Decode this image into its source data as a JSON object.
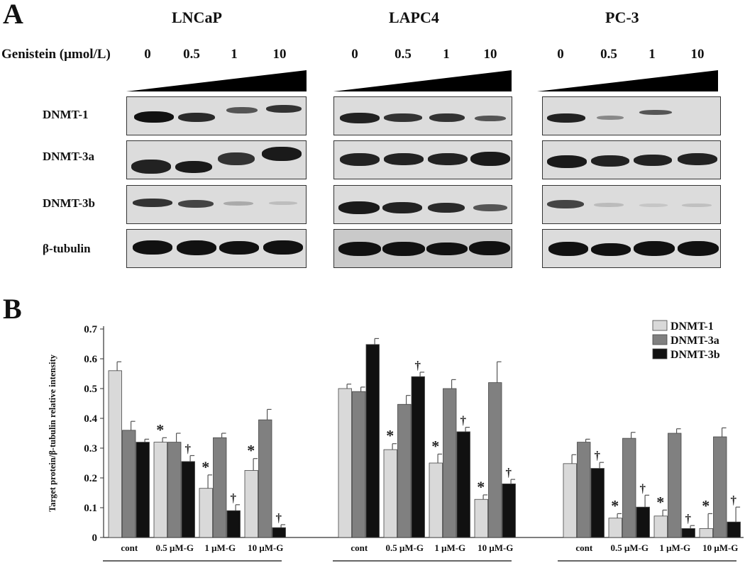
{
  "panelA": {
    "letter": "A",
    "treatment_label": "Genistein (μmol/L)",
    "doses": [
      "0",
      "0.5",
      "1",
      "10"
    ],
    "cell_lines": [
      "LNCaP",
      "LAPC4",
      "PC-3"
    ],
    "row_labels": [
      "DNMT-1",
      "DNMT-3a",
      "DNMT-3b",
      "β-tubulin"
    ]
  },
  "panelB": {
    "letter": "B"
  },
  "chart_data": {
    "type": "bar",
    "ylabel": "Target protein/β-tubulin relative intensity",
    "ylim": [
      0,
      0.7
    ],
    "yticks": [
      "0",
      "0.1",
      "0.2",
      "0.3",
      "0.4",
      "0.5",
      "0.6",
      "0.7"
    ],
    "legend_position": "top-right",
    "groups": [
      {
        "name": "LNCaP",
        "categories": [
          "cont",
          "0.5 μM-G",
          "1 μM-G",
          "10 μM-G"
        ],
        "series": [
          {
            "name": "DNMT-1",
            "values": [
              0.56,
              0.32,
              0.165,
              0.225
            ],
            "errors": [
              0.03,
              0.015,
              0.045,
              0.04
            ],
            "marks": [
              "",
              "*",
              "*",
              "*"
            ]
          },
          {
            "name": "DNMT-3a",
            "values": [
              0.36,
              0.32,
              0.335,
              0.395
            ],
            "errors": [
              0.03,
              0.03,
              0.015,
              0.035
            ],
            "marks": [
              "",
              "",
              "",
              ""
            ]
          },
          {
            "name": "DNMT-3b",
            "values": [
              0.32,
              0.255,
              0.09,
              0.033
            ],
            "errors": [
              0.01,
              0.02,
              0.02,
              0.01
            ],
            "marks": [
              "",
              "†",
              "†",
              "†"
            ]
          }
        ]
      },
      {
        "name": "LAPC-4",
        "categories": [
          "cont",
          "0.5 μM-G",
          "1 μM-G",
          "10 μM-G"
        ],
        "series": [
          {
            "name": "DNMT-1",
            "values": [
              0.5,
              0.295,
              0.25,
              0.128
            ],
            "errors": [
              0.015,
              0.02,
              0.03,
              0.015
            ],
            "marks": [
              "",
              "*",
              "*",
              "*"
            ]
          },
          {
            "name": "DNMT-3a",
            "values": [
              0.49,
              0.447,
              0.5,
              0.52
            ],
            "errors": [
              0.015,
              0.03,
              0.03,
              0.07
            ],
            "marks": [
              "",
              "",
              "",
              ""
            ]
          },
          {
            "name": "DNMT-3b",
            "values": [
              0.648,
              0.54,
              0.355,
              0.18
            ],
            "errors": [
              0.02,
              0.015,
              0.015,
              0.015
            ],
            "marks": [
              "",
              "†",
              "†",
              "†"
            ]
          }
        ]
      },
      {
        "name": "PC-3",
        "categories": [
          "cont",
          "0.5 μM-G",
          "1 μM-G",
          "10 μM-G"
        ],
        "series": [
          {
            "name": "DNMT-1",
            "values": [
              0.248,
              0.065,
              0.072,
              0.03
            ],
            "errors": [
              0.03,
              0.015,
              0.02,
              0.05
            ],
            "marks": [
              "",
              "*",
              "*",
              "*"
            ]
          },
          {
            "name": "DNMT-3a",
            "values": [
              0.32,
              0.333,
              0.35,
              0.338
            ],
            "errors": [
              0.01,
              0.02,
              0.015,
              0.03
            ],
            "marks": [
              "",
              "",
              "",
              ""
            ]
          },
          {
            "name": "DNMT-3b",
            "values": [
              0.232,
              0.102,
              0.03,
              0.052
            ],
            "errors": [
              0.02,
              0.04,
              0.01,
              0.05
            ],
            "marks": [
              "†",
              "†",
              "†",
              "†"
            ]
          }
        ]
      }
    ],
    "series_colors": {
      "DNMT-1": "#d9d9d9",
      "DNMT-3a": "#808080",
      "DNMT-3b": "#111111"
    }
  }
}
